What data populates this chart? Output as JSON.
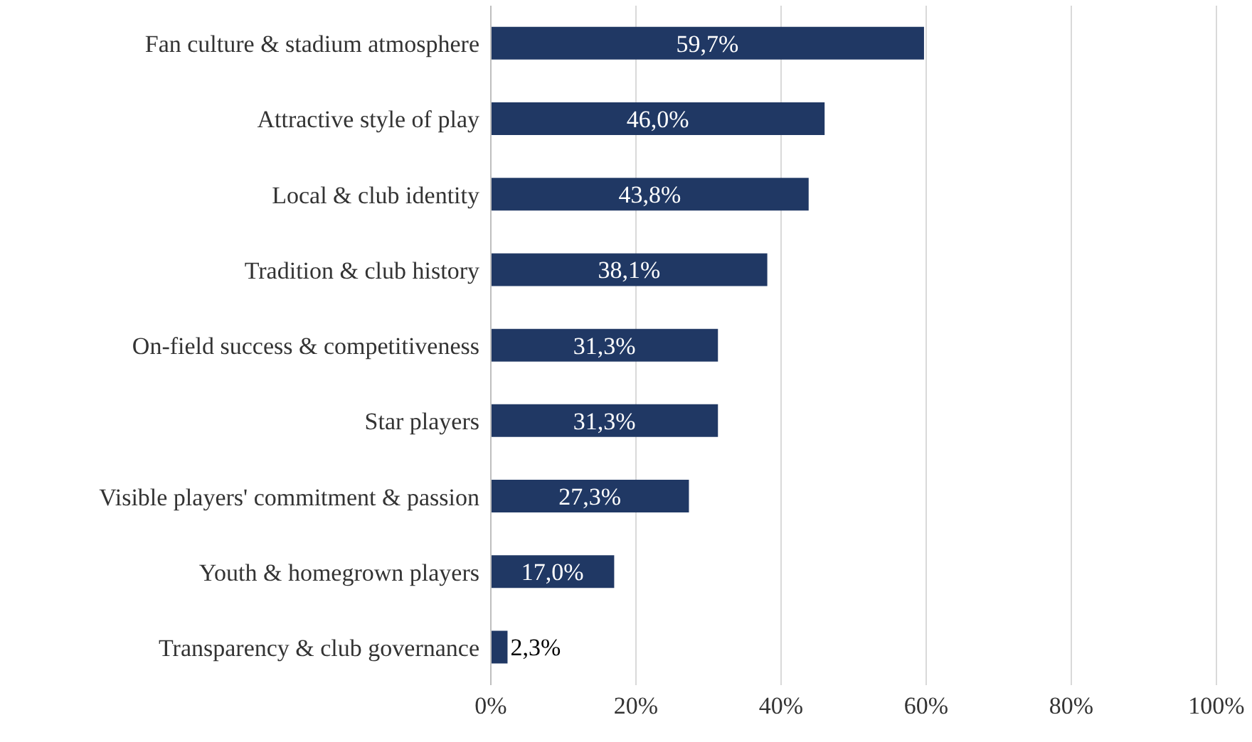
{
  "chart_data": {
    "type": "bar",
    "orientation": "horizontal",
    "categories": [
      "Fan culture & stadium atmosphere",
      "Attractive style of play",
      "Local & club identity",
      "Tradition & club history",
      "On-field success & competitiveness",
      "Star players",
      "Visible players' commitment & passion",
      "Youth & homegrown players",
      "Transparency & club governance"
    ],
    "values": [
      59.7,
      46.0,
      43.8,
      38.1,
      31.3,
      31.3,
      27.3,
      17.0,
      2.3
    ],
    "value_labels": [
      "59,7%",
      "46,0%",
      "43,8%",
      "38,1%",
      "31,3%",
      "31,3%",
      "27,3%",
      "17,0%",
      "2,3%"
    ],
    "color": "#203864",
    "xlim": [
      0,
      100
    ],
    "xticks": [
      {
        "value": 0,
        "label": "0%"
      },
      {
        "value": 20,
        "label": "20%"
      },
      {
        "value": 40,
        "label": "40%"
      },
      {
        "value": 60,
        "label": "60%"
      },
      {
        "value": 80,
        "label": "80%"
      },
      {
        "value": 100,
        "label": "100%"
      }
    ],
    "grid": "x"
  }
}
